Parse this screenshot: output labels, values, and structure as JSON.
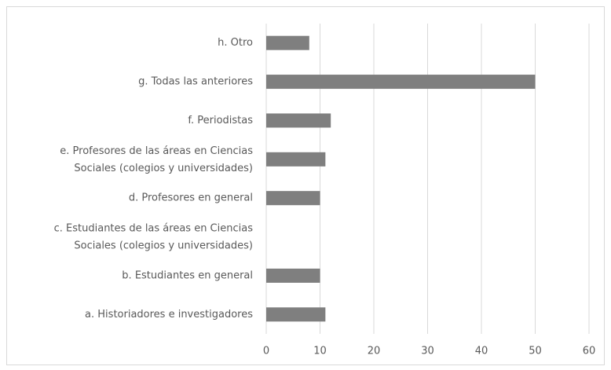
{
  "chart_data": {
    "type": "barh",
    "categories": [
      "h. Otro",
      "g. Todas las anteriores",
      "f. Periodistas",
      "e. Profesores de las áreas en Ciencias\nSociales (colegios y universidades)",
      "d. Profesores en general",
      "c. Estudiantes de las áreas en Ciencias\nSociales (colegios y universidades)",
      "b. Estudiantes en general",
      "a. Historiadores e investigadores"
    ],
    "values": [
      8,
      50,
      12,
      11,
      10,
      0,
      10,
      11
    ],
    "color": "#7f7f7f",
    "xlim": [
      0,
      60
    ],
    "xticks": [
      0,
      10,
      20,
      30,
      40,
      50,
      60
    ],
    "grid": true
  }
}
